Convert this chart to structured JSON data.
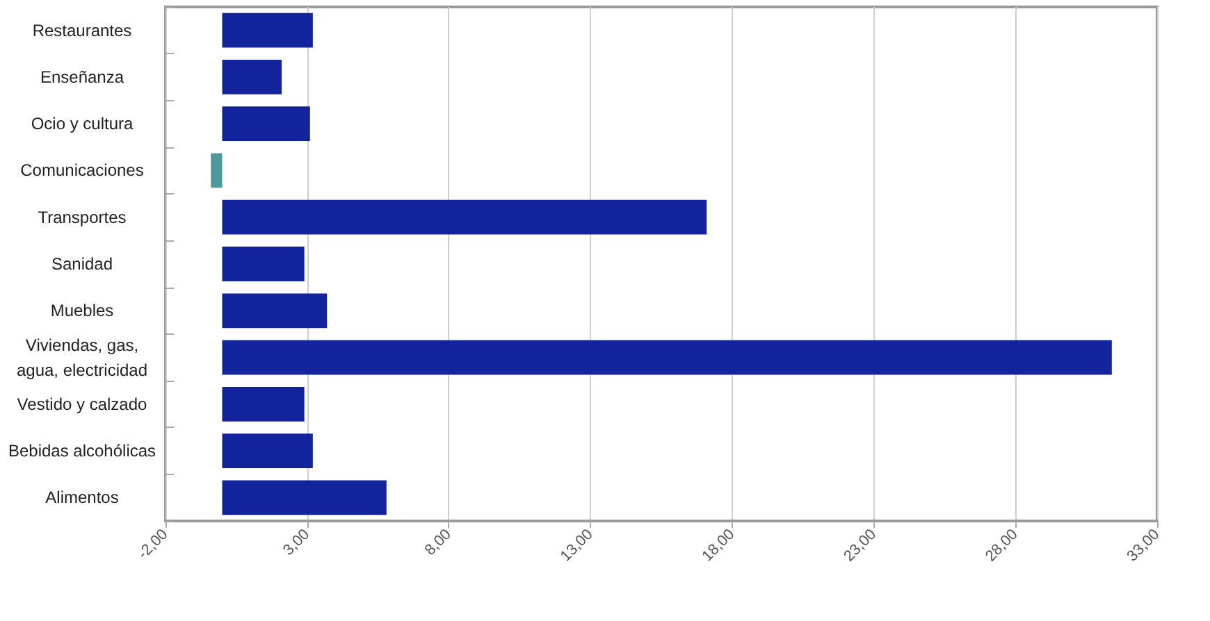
{
  "chart_data": {
    "type": "bar",
    "orientation": "horizontal",
    "categories": [
      "Restaurantes",
      "Enseñanza",
      "Ocio y cultura",
      "Comunicaciones",
      "Transportes",
      "Sanidad",
      "Muebles",
      "Viviendas, gas, agua, electricidad",
      "Vestido y calzado",
      "Bebidas alcohólicas",
      "Alimentos"
    ],
    "values": [
      3.2,
      2.1,
      3.1,
      -0.4,
      17.1,
      2.9,
      3.7,
      31.4,
      2.9,
      3.2,
      5.8
    ],
    "colors": [
      "#12239b",
      "#12239b",
      "#12239b",
      "#4e9a9a",
      "#12239b",
      "#12239b",
      "#12239b",
      "#12239b",
      "#12239b",
      "#12239b",
      "#12239b"
    ],
    "xlim": [
      -2,
      33
    ],
    "xticks": [
      {
        "value": -2,
        "label": "-2,00"
      },
      {
        "value": 3,
        "label": "3,00"
      },
      {
        "value": 8,
        "label": "8,00"
      },
      {
        "value": 13,
        "label": "13,00"
      },
      {
        "value": 18,
        "label": "18,00"
      },
      {
        "value": 23,
        "label": "23,00"
      },
      {
        "value": 28,
        "label": "28,00"
      },
      {
        "value": 33,
        "label": "33,00"
      }
    ],
    "grid": "x"
  }
}
